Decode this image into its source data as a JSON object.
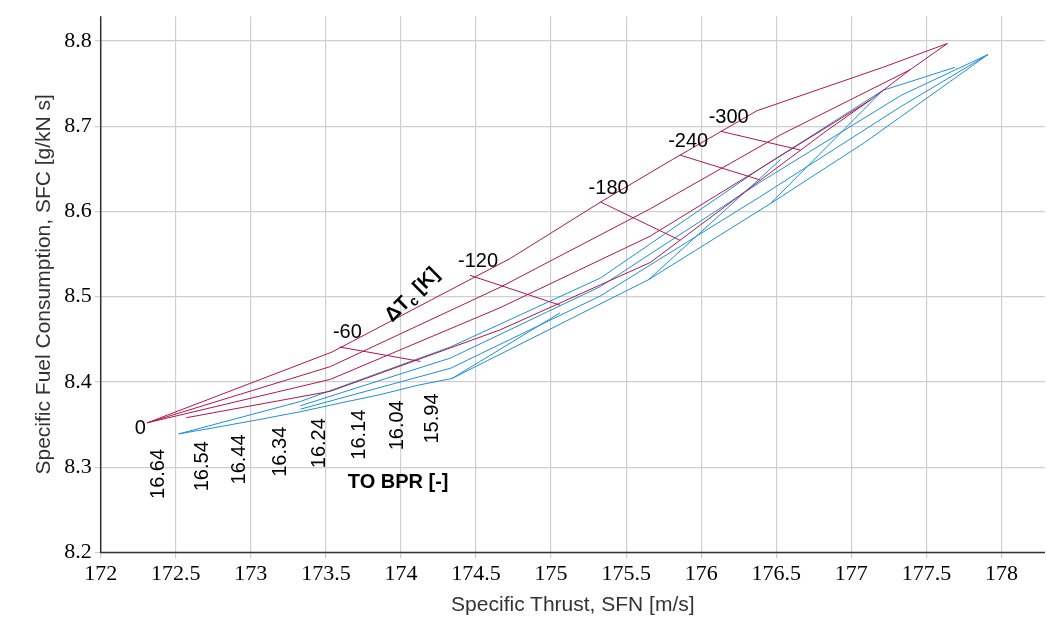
{
  "chart_data": {
    "type": "line",
    "xlabel": "Specific Thrust, SFN [m/s]",
    "ylabel": "Specific Fuel Consumption, SFC [g/kN s]",
    "xlim": [
      172,
      178.29
    ],
    "xticks": [
      172,
      172.5,
      173,
      173.5,
      174,
      174.5,
      175,
      175.5,
      176,
      176.5,
      177,
      177.5,
      178
    ],
    "ylim": [
      8.2,
      8.829
    ],
    "yticks": [
      8.2,
      8.3,
      8.4,
      8.5,
      8.6,
      8.7,
      8.8
    ],
    "grid": true,
    "legend": false,
    "marker": "none",
    "line_style": "solid",
    "series": [
      {
        "color": "#b0174a",
        "x": [
          172.31,
          173.54,
          174.73,
          175.33,
          175.81,
          176.37,
          177.21,
          177.64,
          177.39,
          177.13,
          176.83,
          175.66,
          174.66,
          173.53,
          172.57
        ],
        "values": [
          8.352,
          8.435,
          8.545,
          8.611,
          8.661,
          8.718,
          8.769,
          8.797,
          8.766,
          8.731,
          8.694,
          8.54,
          8.461,
          8.389,
          8.358
        ]
      },
      {
        "color": "#b0174a",
        "x": [
          172.31,
          173.53,
          174.66,
          175.66,
          176.53,
          177.39
        ],
        "values": [
          8.352,
          8.418,
          8.511,
          8.603,
          8.69,
          8.766
        ]
      },
      {
        "color": "#b0174a",
        "x": [
          172.31,
          173.53,
          174.66,
          175.66,
          176.39,
          177.13
        ],
        "values": [
          8.352,
          8.403,
          8.487,
          8.571,
          8.65,
          8.731
        ]
      },
      {
        "color": "#b0174a",
        "x": [
          173.59,
          174.13
        ],
        "values": [
          8.441,
          8.424
        ]
      },
      {
        "color": "#b0174a",
        "x": [
          174.46,
          175.06
        ],
        "values": [
          8.525,
          8.49
        ]
      },
      {
        "color": "#b0174a",
        "x": [
          175.33,
          175.86
        ],
        "values": [
          8.611,
          8.566
        ]
      },
      {
        "color": "#b0174a",
        "x": [
          175.86,
          176.39
        ],
        "values": [
          8.666,
          8.637
        ]
      },
      {
        "color": "#b0174a",
        "x": [
          176.13,
          176.66
        ],
        "values": [
          8.694,
          8.672
        ]
      },
      {
        "color": "#1f8fd8",
        "x": [
          172.52,
          172.81,
          173.06,
          173.33,
          173.59,
          173.86,
          174.11,
          174.34,
          175.65,
          176.46,
          177.09,
          177.91
        ],
        "values": [
          8.339,
          8.348,
          8.356,
          8.365,
          8.375,
          8.385,
          8.396,
          8.404,
          8.52,
          8.609,
          8.681,
          8.784
        ]
      },
      {
        "color": "#1f8fd8",
        "x": [
          172.52,
          173.33,
          174.33,
          175.33,
          176.39,
          177.21,
          177.69
        ],
        "values": [
          8.339,
          8.377,
          8.441,
          8.522,
          8.65,
          8.742,
          8.769
        ]
      },
      {
        "color": "#1f8fd8",
        "x": [
          173.33,
          174.33,
          175.33,
          176.39,
          177.33,
          177.91
        ],
        "values": [
          8.372,
          8.428,
          8.512,
          8.634,
          8.736,
          8.784
        ]
      },
      {
        "color": "#1f8fd8",
        "x": [
          173.33,
          174.33,
          175.33,
          176.39,
          177.33,
          177.91
        ],
        "values": [
          8.368,
          8.416,
          8.501,
          8.617,
          8.723,
          8.784
        ]
      },
      {
        "color": "#1f8fd8",
        "x": [
          174.34,
          175.06
        ],
        "values": [
          8.404,
          8.481
        ]
      },
      {
        "color": "#1f8fd8",
        "x": [
          175.65,
          176.53
        ],
        "values": [
          8.52,
          8.661
        ]
      },
      {
        "color": "#1f8fd8",
        "x": [
          176.46,
          177.21
        ],
        "values": [
          8.609,
          8.742
        ]
      }
    ],
    "annotations": [
      {
        "text": "0",
        "x": 172.31,
        "y": 8.352
      },
      {
        "text": "-60",
        "x": 173.59,
        "y": 8.441
      },
      {
        "text": "-120",
        "x": 174.46,
        "y": 8.525
      },
      {
        "text": "-180",
        "x": 175.33,
        "y": 8.611
      },
      {
        "text": "-240",
        "x": 175.86,
        "y": 8.666
      },
      {
        "text": "-300",
        "x": 176.13,
        "y": 8.694
      },
      {
        "text": "16.64",
        "x": 172.52,
        "y": 8.339
      },
      {
        "text": "16.54",
        "x": 172.81,
        "y": 8.348
      },
      {
        "text": "16.44",
        "x": 173.06,
        "y": 8.356
      },
      {
        "text": "16.34",
        "x": 173.33,
        "y": 8.365
      },
      {
        "text": "16.24",
        "x": 173.59,
        "y": 8.375
      },
      {
        "text": "16.14",
        "x": 173.86,
        "y": 8.385
      },
      {
        "text": "16.04",
        "x": 174.11,
        "y": 8.396
      },
      {
        "text": "15.94",
        "x": 174.34,
        "y": 8.404
      },
      "ΔT$_{c}$ [K]",
      "TO BPR [-]"
    ]
  }
}
